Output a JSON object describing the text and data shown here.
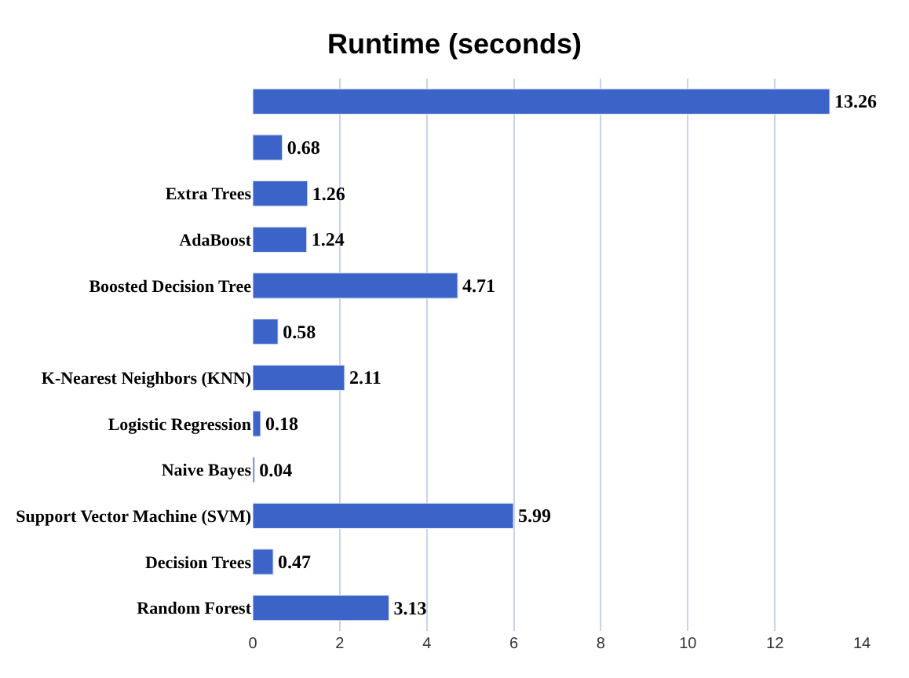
{
  "chart_data": {
    "type": "bar",
    "orientation": "horizontal",
    "title": "Runtime (seconds)",
    "categories": [
      null,
      null,
      "Extra Trees",
      "AdaBoost",
      "Boosted Decision Tree",
      null,
      "K-Nearest Neighbors (KNN)",
      "Logistic Regression",
      "Naive Bayes",
      "Support Vector Machine (SVM)",
      "Decision Trees",
      "Random Forest"
    ],
    "values": [
      13.26,
      0.68,
      1.26,
      1.24,
      4.71,
      0.58,
      2.11,
      0.18,
      0.04,
      5.99,
      0.47,
      3.13
    ],
    "color": "#3c64c8",
    "xlim": [
      0,
      14
    ],
    "xticks": [
      0,
      2,
      4,
      6,
      8,
      10,
      12,
      14
    ],
    "grid": "x",
    "data_labels": true
  }
}
